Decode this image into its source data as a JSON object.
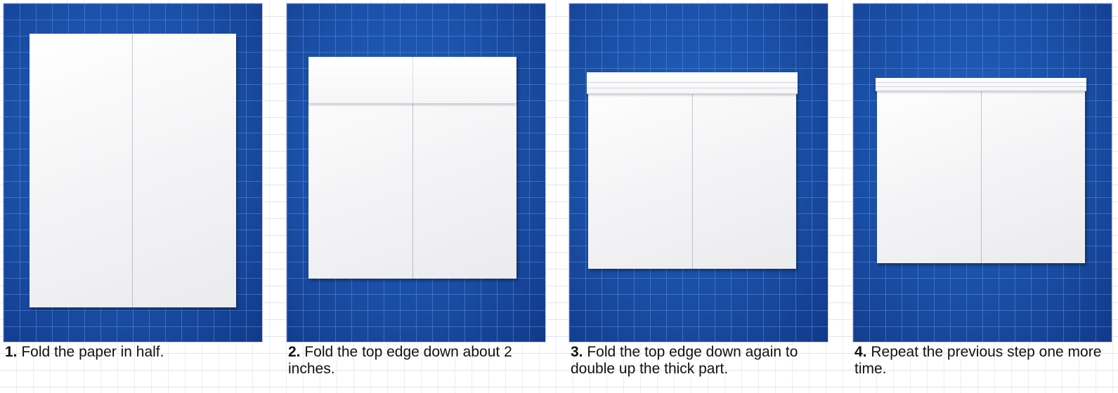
{
  "steps": [
    {
      "number": "1.",
      "text": " Fold the paper in half."
    },
    {
      "number": "2.",
      "text": " Fold the top edge down about 2 inches."
    },
    {
      "number": "3.",
      "text": " Fold the top edge down again to double up the thick part."
    },
    {
      "number": "4.",
      "text": " Repeat the previous step one more time."
    }
  ],
  "colors": {
    "mat_blue": "#1a4fa6",
    "paper": "#f4f4f6"
  }
}
